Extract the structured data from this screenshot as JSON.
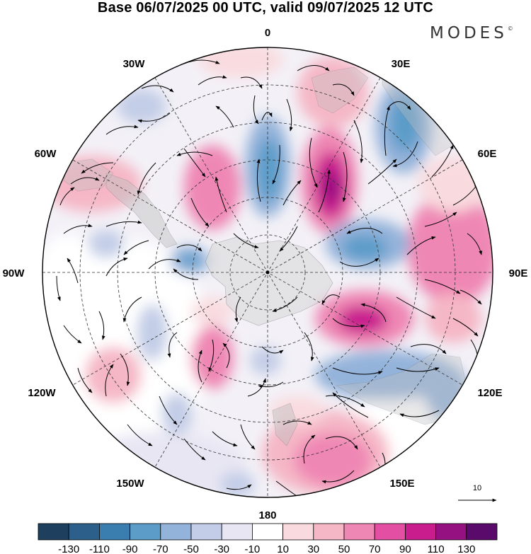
{
  "title": "Base 06/07/2025 00 UTC, valid 09/07/2025 12 UTC",
  "brand": {
    "text": "MODES",
    "mark": "©"
  },
  "longitude_labels": {
    "lon_0": "0",
    "lon_30e": "30E",
    "lon_60e": "60E",
    "lon_90e": "90E",
    "lon_120e": "120E",
    "lon_150e": "150E",
    "lon_180": "180",
    "lon_150w": "150W",
    "lon_120w": "120W",
    "lon_90w": "90W",
    "lon_60w": "60W",
    "lon_30w": "30W"
  },
  "vector_reference": {
    "label": "10"
  },
  "colorbar": {
    "colors": [
      "#1f3f5f",
      "#2c5f8a",
      "#3a7eb0",
      "#5b9cc9",
      "#94b3da",
      "#c3cde7",
      "#e8e6f3",
      "#ffffff",
      "#f9dbdf",
      "#f5b7c6",
      "#ef87b4",
      "#e34fa3",
      "#c91d8e",
      "#951080",
      "#5a0a6b"
    ],
    "tick_labels": [
      "-130",
      "-110",
      "-90",
      "-70",
      "-50",
      "-30",
      "-10",
      "10",
      "30",
      "50",
      "70",
      "90",
      "110",
      "130"
    ]
  },
  "map_style": {
    "projection": "south polar stereographic",
    "field": "shaded anomaly with wind vectors",
    "land_color": "#bfbfbf",
    "grid": "dashed meridians and parallels"
  }
}
